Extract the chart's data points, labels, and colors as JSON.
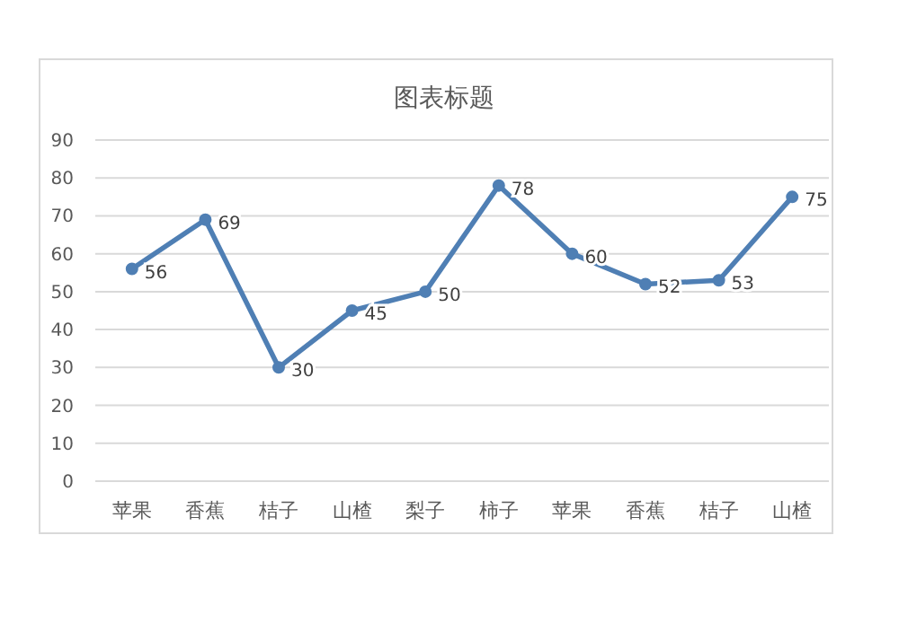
{
  "chart_data": {
    "type": "line",
    "title": "图表标题",
    "categories": [
      "苹果",
      "香蕉",
      "桔子",
      "山楂",
      "梨子",
      "柿子",
      "苹果",
      "香蕉",
      "桔子",
      "山楂"
    ],
    "values": [
      56,
      69,
      30,
      45,
      50,
      78,
      60,
      52,
      53,
      75
    ],
    "color": "#4f7fb4",
    "ylim": [
      0,
      90
    ],
    "yticks": [
      0,
      10,
      20,
      30,
      40,
      50,
      60,
      70,
      80,
      90
    ],
    "grid": "y",
    "marker": "circle",
    "data_labels": true
  }
}
